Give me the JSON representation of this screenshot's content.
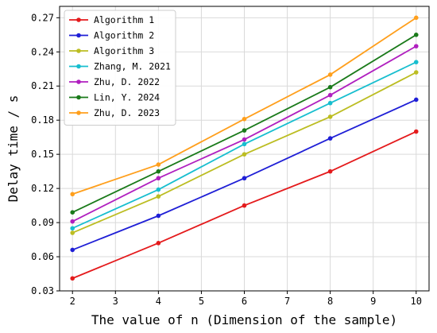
{
  "chart_data": {
    "type": "line",
    "title": "",
    "xlabel": "The value of n (Dimension of the sample)",
    "ylabel": "Delay time / s",
    "x": [
      2,
      4,
      6,
      8,
      10
    ],
    "xlim": [
      1.7,
      10.3
    ],
    "ylim": [
      0.03,
      0.28
    ],
    "xticks": [
      "2",
      "3",
      "4",
      "5",
      "6",
      "7",
      "8",
      "9",
      "10"
    ],
    "yticks": [
      "0.03",
      "0.06",
      "0.09",
      "0.12",
      "0.15",
      "0.18",
      "0.21",
      "0.24",
      "0.27"
    ],
    "grid": true,
    "legend_position": "top-left",
    "series": [
      {
        "name": "Algorithm 1",
        "color": "#e41a1c",
        "values": [
          0.041,
          0.072,
          0.105,
          0.135,
          0.17
        ]
      },
      {
        "name": "Algorithm 2",
        "color": "#1f1fd6",
        "values": [
          0.066,
          0.096,
          0.129,
          0.164,
          0.198
        ]
      },
      {
        "name": "Algorithm 3",
        "color": "#bcbd22",
        "values": [
          0.081,
          0.113,
          0.15,
          0.183,
          0.222
        ]
      },
      {
        "name": "Zhang, M. 2021",
        "color": "#17becf",
        "values": [
          0.085,
          0.119,
          0.159,
          0.195,
          0.231
        ]
      },
      {
        "name": "Zhu, D. 2022",
        "color": "#b01fbf",
        "values": [
          0.091,
          0.129,
          0.163,
          0.202,
          0.245
        ]
      },
      {
        "name": "Lin, Y. 2024",
        "color": "#1a7a1a",
        "values": [
          0.099,
          0.135,
          0.171,
          0.209,
          0.255
        ]
      },
      {
        "name": "Zhu, D. 2023",
        "color": "#ff9f1c",
        "values": [
          0.115,
          0.141,
          0.181,
          0.22,
          0.27
        ]
      }
    ]
  }
}
